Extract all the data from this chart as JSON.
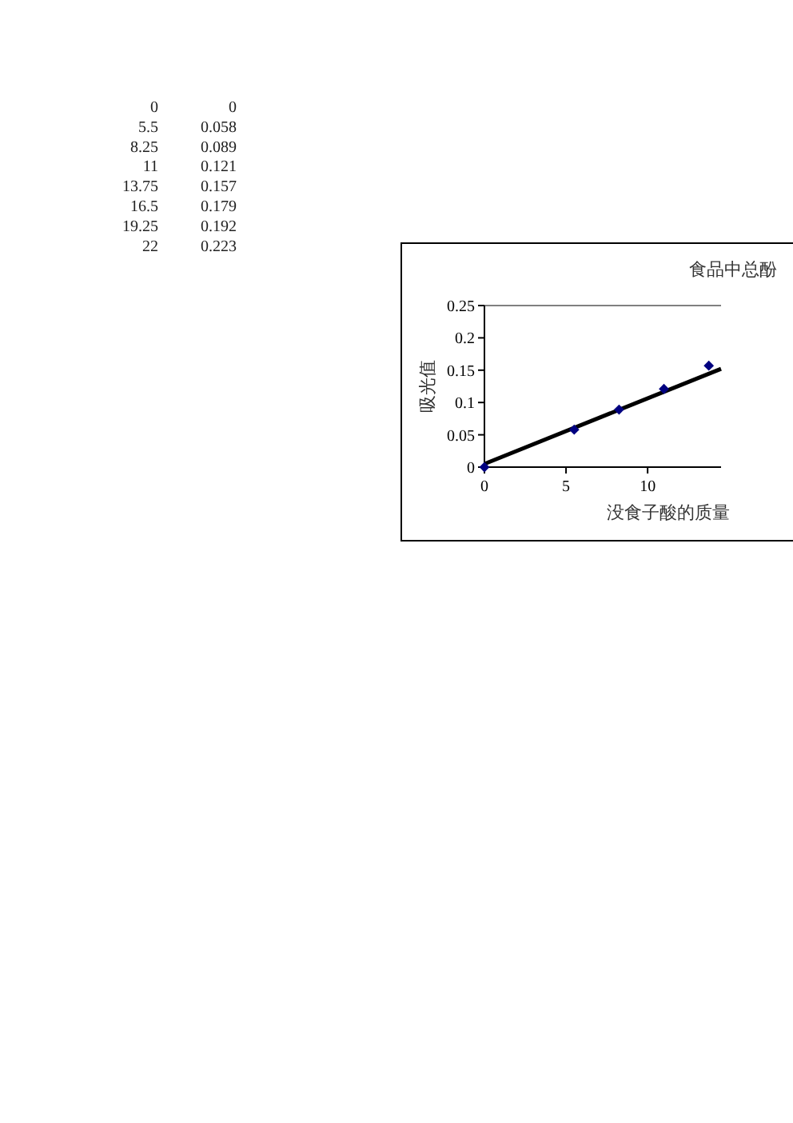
{
  "chart_data": {
    "type": "scatter",
    "title": "食品中总酚",
    "xlabel": "没食子酸的质量",
    "ylabel": "吸光值",
    "xlim": [
      0,
      14.5
    ],
    "xticks": [
      0,
      5,
      10
    ],
    "ylim": [
      0,
      0.25
    ],
    "yticks": [
      0,
      {
        "value": 0.05,
        "label": "0.05"
      },
      {
        "value": 0.1,
        "label": "0.1"
      },
      {
        "value": 0.15,
        "label": "0.15"
      },
      {
        "value": 0.2,
        "label": "0.2"
      },
      {
        "value": 0.25,
        "label": "0.25"
      }
    ],
    "grid": false,
    "series": [
      {
        "marker": "diamond",
        "color": "#000080",
        "x": [
          0,
          5.5,
          8.25,
          11,
          13.75
        ],
        "values": [
          0,
          0.058,
          0.089,
          0.121,
          0.157
        ]
      },
      {
        "type": "line",
        "color": "#000000",
        "x": [
          0,
          14.5
        ],
        "values": [
          0.005,
          0.152
        ]
      }
    ],
    "annotations": [
      "0 0",
      "5.5 0.058",
      "8.25 0.089",
      "11 0.121",
      "13.75 0.157",
      "16.5 0.179",
      "19.25 0.192",
      "22 0.223"
    ]
  }
}
